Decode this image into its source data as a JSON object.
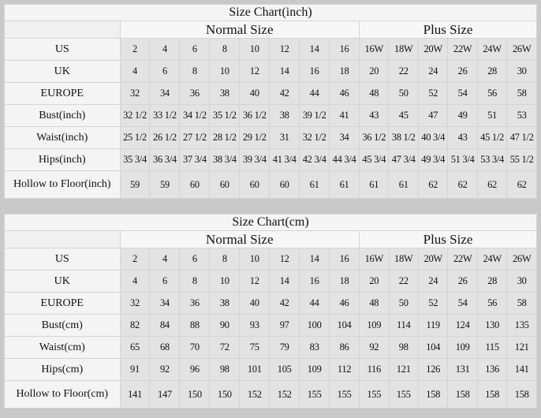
{
  "group_headers": {
    "normal": "Normal Size",
    "plus": "Plus Size"
  },
  "tables": [
    {
      "title": "Size Chart(inch)",
      "rows": [
        {
          "label": "US",
          "values": [
            "2",
            "4",
            "6",
            "8",
            "10",
            "12",
            "14",
            "16",
            "16W",
            "18W",
            "20W",
            "22W",
            "24W",
            "26W"
          ]
        },
        {
          "label": "UK",
          "values": [
            "4",
            "6",
            "8",
            "10",
            "12",
            "14",
            "16",
            "18",
            "20",
            "22",
            "24",
            "26",
            "28",
            "30"
          ]
        },
        {
          "label": "EUROPE",
          "values": [
            "32",
            "34",
            "36",
            "38",
            "40",
            "42",
            "44",
            "46",
            "48",
            "50",
            "52",
            "54",
            "56",
            "58"
          ]
        },
        {
          "label": "Bust(inch)",
          "values": [
            "32 1/2",
            "33 1/2",
            "34 1/2",
            "35 1/2",
            "36 1/2",
            "38",
            "39 1/2",
            "41",
            "43",
            "45",
            "47",
            "49",
            "51",
            "53"
          ]
        },
        {
          "label": "Waist(inch)",
          "values": [
            "25 1/2",
            "26 1/2",
            "27 1/2",
            "28 1/2",
            "29 1/2",
            "31",
            "32 1/2",
            "34",
            "36 1/2",
            "38 1/2",
            "40 3/4",
            "43",
            "45 1/2",
            "47 1/2"
          ]
        },
        {
          "label": "Hips(inch)",
          "values": [
            "35 3/4",
            "36 3/4",
            "37 3/4",
            "38 3/4",
            "39 3/4",
            "41 3/4",
            "42 3/4",
            "44 3/4",
            "45 3/4",
            "47 3/4",
            "49 3/4",
            "51 3/4",
            "53 3/4",
            "55 1/2"
          ]
        },
        {
          "label": "Hollow to Floor(inch)",
          "values": [
            "59",
            "59",
            "60",
            "60",
            "60",
            "60",
            "61",
            "61",
            "61",
            "61",
            "62",
            "62",
            "62",
            "62"
          ]
        }
      ]
    },
    {
      "title": "Size Chart(cm)",
      "rows": [
        {
          "label": "US",
          "values": [
            "2",
            "4",
            "6",
            "8",
            "10",
            "12",
            "14",
            "16",
            "16W",
            "18W",
            "20W",
            "22W",
            "24W",
            "26W"
          ]
        },
        {
          "label": "UK",
          "values": [
            "4",
            "6",
            "8",
            "10",
            "12",
            "14",
            "16",
            "18",
            "20",
            "22",
            "24",
            "26",
            "28",
            "30"
          ]
        },
        {
          "label": "EUROPE",
          "values": [
            "32",
            "34",
            "36",
            "38",
            "40",
            "42",
            "44",
            "46",
            "48",
            "50",
            "52",
            "54",
            "56",
            "58"
          ]
        },
        {
          "label": "Bust(cm)",
          "values": [
            "82",
            "84",
            "88",
            "90",
            "93",
            "97",
            "100",
            "104",
            "109",
            "114",
            "119",
            "124",
            "130",
            "135"
          ]
        },
        {
          "label": "Waist(cm)",
          "values": [
            "65",
            "68",
            "70",
            "72",
            "75",
            "79",
            "83",
            "86",
            "92",
            "98",
            "104",
            "109",
            "115",
            "121"
          ]
        },
        {
          "label": "Hips(cm)",
          "values": [
            "91",
            "92",
            "96",
            "98",
            "101",
            "105",
            "109",
            "112",
            "116",
            "121",
            "126",
            "131",
            "136",
            "141"
          ]
        },
        {
          "label": "Hollow to Floor(cm)",
          "values": [
            "141",
            "147",
            "150",
            "150",
            "152",
            "152",
            "155",
            "155",
            "155",
            "155",
            "158",
            "158",
            "158",
            "158"
          ]
        }
      ]
    }
  ]
}
